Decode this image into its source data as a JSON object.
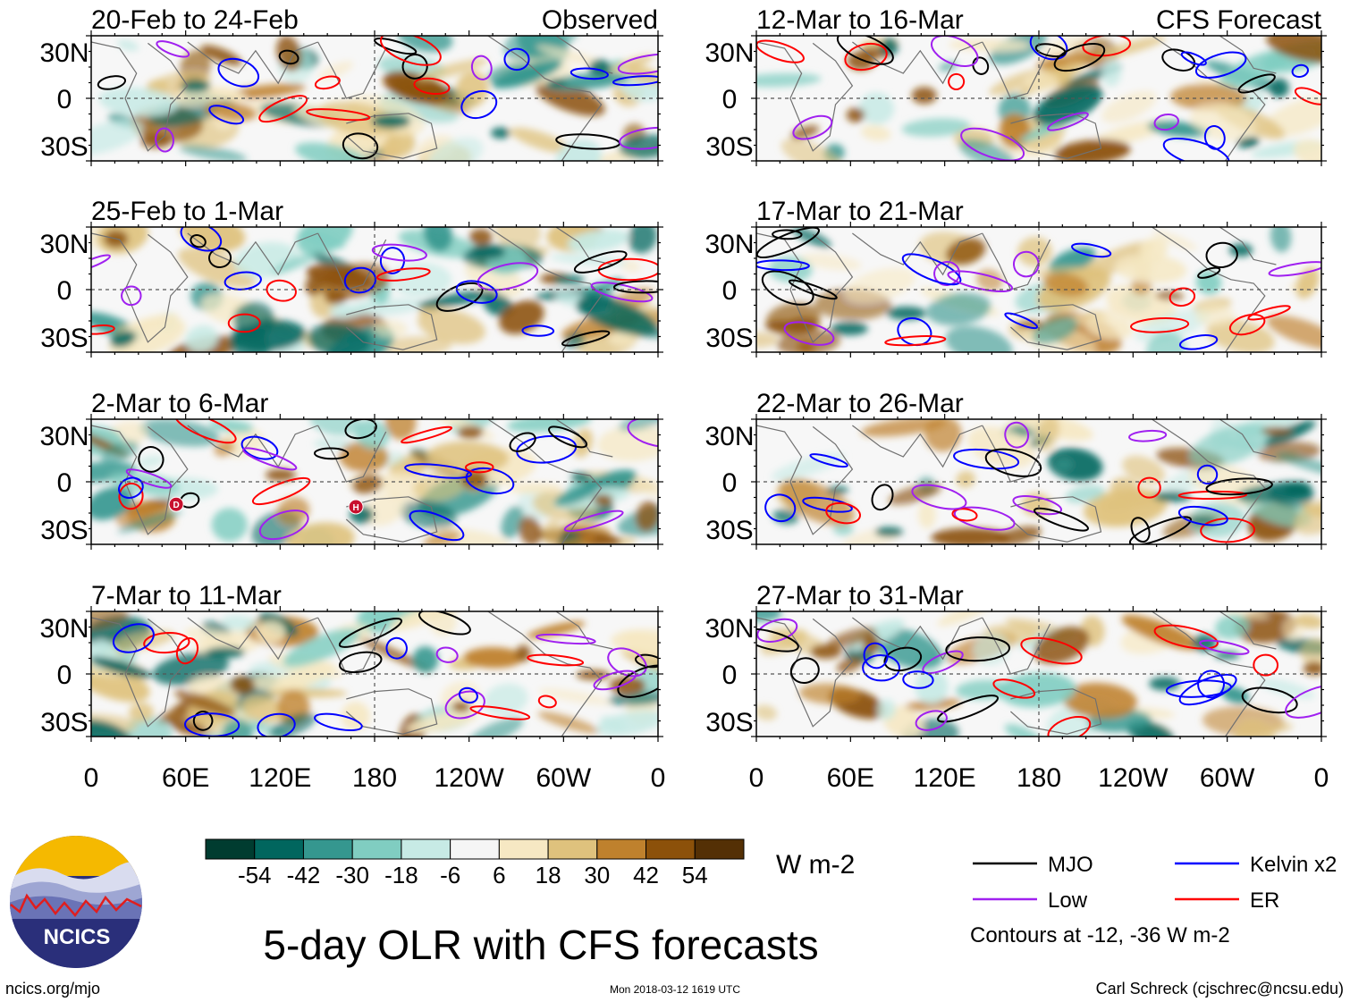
{
  "chart_data": {
    "type": "heatmap",
    "title": "5-day OLR with CFS forecasts",
    "variable": "5-day OLR anomaly",
    "units": "W m-2",
    "x_ticks": [
      "0",
      "60E",
      "120E",
      "180",
      "120W",
      "60W",
      "0"
    ],
    "y_ticks": [
      "30N",
      "0",
      "30S"
    ],
    "columns": [
      {
        "header": "Observed",
        "panels": [
          {
            "period": "20-Feb to 24-Feb"
          },
          {
            "period": "25-Feb to 1-Mar"
          },
          {
            "period": "2-Mar to 6-Mar"
          },
          {
            "period": "7-Mar to 11-Mar"
          }
        ]
      },
      {
        "header": "CFS Forecast",
        "panels": [
          {
            "period": "12-Mar to 16-Mar"
          },
          {
            "period": "17-Mar to 21-Mar"
          },
          {
            "period": "22-Mar to 26-Mar"
          },
          {
            "period": "27-Mar to 31-Mar"
          }
        ]
      }
    ],
    "colorbar": {
      "labels": [
        "-54",
        "-42",
        "-30",
        "-18",
        "-6",
        "6",
        "18",
        "30",
        "42",
        "54"
      ],
      "colors": [
        "#003c30",
        "#01665e",
        "#35978f",
        "#80cdc1",
        "#c7eae5",
        "#f5f5f5",
        "#f6e8c3",
        "#dfc27d",
        "#bf812d",
        "#8c510a",
        "#543005"
      ]
    },
    "legend": [
      {
        "label": "MJO",
        "color": "#000000"
      },
      {
        "label": "Kelvin x2",
        "color": "#0000ff"
      },
      {
        "label": "Low",
        "color": "#a020f0"
      },
      {
        "label": "ER",
        "color": "#ff0000"
      }
    ],
    "contour_note": "Contours at -12, -36 W m-2",
    "markers": [
      {
        "panel": "2-Mar to 6-Mar",
        "label": "D"
      },
      {
        "panel": "2-Mar to 6-Mar",
        "label": "H"
      }
    ]
  },
  "footer": {
    "logo_text": "NCICS",
    "url": "ncics.org/mjo",
    "timestamp": "Mon 2018-03-12 1619 UTC",
    "credit": "Carl Schreck (cjschrec@ncsu.edu)"
  }
}
